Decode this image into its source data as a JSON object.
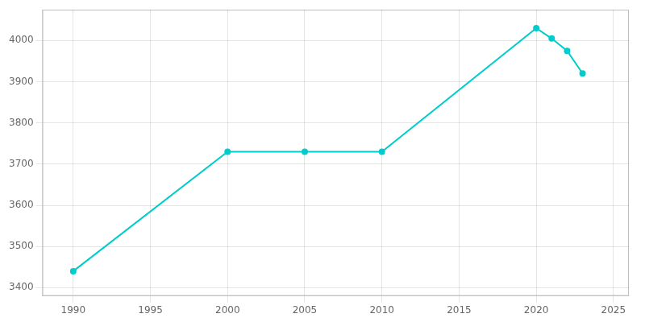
{
  "chart_data": {
    "type": "line",
    "x": [
      1990,
      2000,
      2005,
      2010,
      2020,
      2021,
      2022,
      2023
    ],
    "values": [
      3440,
      3730,
      3730,
      3730,
      4030,
      4005,
      3975,
      3920
    ],
    "color": "#00CCCC",
    "marker": "circle",
    "xlim": [
      1988,
      2026
    ],
    "ylim": [
      3380,
      4075
    ],
    "xticks": [
      1990,
      1995,
      2000,
      2005,
      2010,
      2015,
      2020,
      2025
    ],
    "yticks": [
      3400,
      3500,
      3600,
      3700,
      3800,
      3900,
      4000
    ],
    "grid": true
  }
}
